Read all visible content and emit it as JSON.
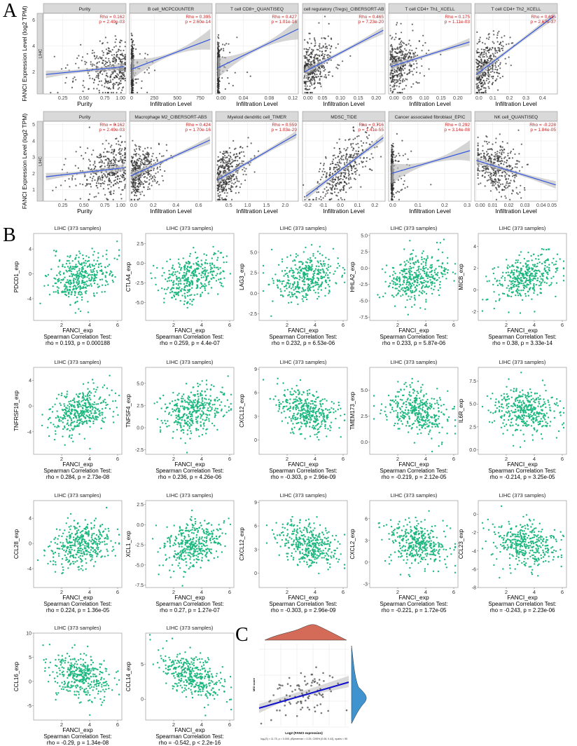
{
  "colors": {
    "point_dark": "#333333",
    "fit_line": "#3355dd",
    "ci_band": "#bdbdbd",
    "stat_red": "#cc2222",
    "strip": "#d9d9d9",
    "point_green": "#1db87f",
    "density_red": "#d46a58",
    "density_blue": "#3f93cf",
    "fit_c": "#1010cc"
  },
  "panel_labels": {
    "a": "A",
    "b": "B",
    "c": "C"
  },
  "chart_data": [
    {
      "type": "scatter",
      "panel": "A",
      "ylabel": "FANCI Expression Level (log2 TPM)",
      "row_strip": "LIHC",
      "rows": [
        {
          "ylim": [
            0.3,
            6.5
          ],
          "yticks": [
            "2",
            "4",
            "6"
          ],
          "ytick_values": [
            2,
            4,
            6
          ],
          "facets": [
            {
              "title": "Purity",
              "xlabel": "Purity",
              "rho": "Rho = 0.162",
              "p": "p = 2.49e-03",
              "xlim": [
                0.02,
                1.0
              ],
              "xticks": [
                "0.25",
                "0.50",
                "0.75",
                "1.00"
              ],
              "xtick_values": [
                0.25,
                0.5,
                0.75,
                1.0
              ],
              "fit": [
                [
                  0.05,
                  1.8
                ],
                [
                  0.98,
                  2.4
                ]
              ],
              "dist": "purity"
            },
            {
              "title": "B cell_MCPCOUNTER",
              "xlabel": "Infiltration Level",
              "rho": "Rho = 0.395",
              "p": "p = 2.60e-14",
              "xlim": [
                -20,
                880
              ],
              "xticks": [
                "0",
                "250",
                "500",
                "750"
              ],
              "xtick_values": [
                0,
                250,
                500,
                750
              ],
              "fit": [
                [
                  0,
                  2.2
                ],
                [
                  860,
                  4.5
                ]
              ],
              "dist": "zero"
            },
            {
              "title": "T cell CD8+_QUANTISEQ",
              "xlabel": "Infiltration Level",
              "rho": "Rho = 0.427",
              "p": "p = 1.01e-16",
              "xlim": [
                -0.003,
                0.125
              ],
              "xticks": [
                "0.00",
                "0.04",
                "0.08",
                "0.12"
              ],
              "xtick_values": [
                0,
                0.04,
                0.08,
                0.12
              ],
              "fit": [
                [
                  0,
                  2.3
                ],
                [
                  0.125,
                  5.3
                ]
              ],
              "dist": "zero"
            },
            {
              "title": "cell regulatory (Tregs)_CIBERSORT-AB",
              "xlabel": "Infiltration Level",
              "rho": "Rho = 0.465",
              "p": "p = 7.23e-20",
              "xlim": [
                -0.006,
                0.225
              ],
              "xticks": [
                "0.00",
                "0.05",
                "0.10",
                "0.15",
                "0.20"
              ],
              "xtick_values": [
                0,
                0.05,
                0.1,
                0.15,
                0.2
              ],
              "fit": [
                [
                  0,
                  2.0
                ],
                [
                  0.22,
                  5.2
                ]
              ],
              "dist": "skew"
            },
            {
              "title": "T cell CD4+ Th1_XCELL",
              "xlabel": "Infiltration Level",
              "rho": "Rho = 0.175",
              "p": "p = 1.11e-03",
              "xlim": [
                -0.006,
                0.24
              ],
              "xticks": [
                "0.00",
                "0.05",
                "0.10",
                "0.15",
                "0.20"
              ],
              "xtick_values": [
                0,
                0.05,
                0.1,
                0.15,
                0.2
              ],
              "fit": [
                [
                  0,
                  2.4
                ],
                [
                  0.235,
                  4.3
                ]
              ],
              "dist": "skew"
            },
            {
              "title": "T cell CD4+ Th2_XCELL",
              "xlabel": "Infiltration Level",
              "rho": "Rho = 0.615",
              "p": "p = 2.67e-37",
              "xlim": [
                -0.01,
                0.49
              ],
              "xticks": [
                "0.0",
                "0.1",
                "0.2",
                "0.3",
                "0.4"
              ],
              "xtick_values": [
                0,
                0.1,
                0.2,
                0.3,
                0.4
              ],
              "fit": [
                [
                  0,
                  1.8
                ],
                [
                  0.47,
                  6.3
                ]
              ],
              "dist": "skew"
            }
          ]
        },
        {
          "ylim": [
            0.3,
            5.2
          ],
          "yticks": [
            "1",
            "2",
            "3",
            "4",
            "5"
          ],
          "ytick_values": [
            1,
            2,
            3,
            4,
            5
          ],
          "facets": [
            {
              "title": "Purity",
              "xlabel": "Purity",
              "rho": "Rho = 0.162",
              "p": "p = 2.49e-03",
              "xlim": [
                0.02,
                1.0
              ],
              "xticks": [
                "0.25",
                "0.50",
                "0.75",
                "1.00"
              ],
              "xtick_values": [
                0.25,
                0.5,
                0.75,
                1.0
              ],
              "fit": [
                [
                  0.05,
                  1.8
                ],
                [
                  0.98,
                  2.35
                ]
              ],
              "dist": "purity"
            },
            {
              "title": "Macrophage M2_CIBERSORT-ABS",
              "xlabel": "Infiltration Level",
              "rho": "Rho = 0.424",
              "p": "p = 1.70e-16",
              "xlim": [
                -0.01,
                0.72
              ],
              "xticks": [
                "0.0",
                "0.2",
                "0.4",
                "0.6"
              ],
              "xtick_values": [
                0,
                0.2,
                0.4,
                0.6
              ],
              "fit": [
                [
                  0,
                  1.85
                ],
                [
                  0.7,
                  4.05
                ]
              ],
              "dist": "skew"
            },
            {
              "title": "Myeloid dendritic cell_TIMER",
              "xlabel": "Infiltration Level",
              "rho": "Rho = 0.559",
              "p": "p = 1.03e-29",
              "xlim": [
                0.15,
                2.35
              ],
              "xticks": [
                "0.5",
                "1.0",
                "1.5",
                "2.0"
              ],
              "xtick_values": [
                0.5,
                1.0,
                1.5,
                2.0
              ],
              "fit": [
                [
                  0.2,
                  1.6
                ],
                [
                  2.3,
                  4.4
                ]
              ],
              "dist": "skew"
            },
            {
              "title": "MDSC_TIDE",
              "xlabel": "Infiltration Level",
              "rho": "Rho = 0.716",
              "p": "p = 1.41e-55",
              "xlim": [
                -0.22,
                0.26
              ],
              "xticks": [
                "-0.2",
                "-0.1",
                "0.0",
                "0.1",
                "0.2"
              ],
              "xtick_values": [
                -0.2,
                -0.1,
                0,
                0.1,
                0.2
              ],
              "fit": [
                [
                  -0.2,
                  0.6
                ],
                [
                  0.25,
                  4.2
                ]
              ],
              "dist": "normal"
            },
            {
              "title": "Cancer associated fibroblast_EPIC",
              "xlabel": "Infiltration Level",
              "rho": "Rho = 0.292",
              "p": "p = 3.14e-08",
              "xlim": [
                -0.01,
                0.3
              ],
              "xticks": [
                "0.0",
                "0.1",
                "0.2",
                "0.3"
              ],
              "xtick_values": [
                0,
                0.1,
                0.2,
                0.3
              ],
              "fit": [
                [
                  0,
                  2.0
                ],
                [
                  0.295,
                  3.4
                ]
              ],
              "dist": "zero"
            },
            {
              "title": "NK cell_QUANTISEQ",
              "xlabel": "Infiltration Level",
              "rho": "Rho = -0.228",
              "p": "p = 1.84e-05",
              "xlim": [
                -0.001,
                0.05
              ],
              "xticks": [
                "0.00",
                "0.01",
                "0.02",
                "0.03",
                "0.04",
                "0.05"
              ],
              "xtick_values": [
                0,
                0.01,
                0.02,
                0.03,
                0.04,
                0.05
              ],
              "fit": [
                [
                  0,
                  2.8
                ],
                [
                  0.049,
                  1.3
                ]
              ],
              "dist": "nk"
            }
          ]
        }
      ]
    },
    {
      "type": "scatter",
      "panel": "B",
      "title": "LIHC (373 samples)",
      "n": 373,
      "xlabel": "FANCI_exp",
      "xlim": [
        0,
        6.3
      ],
      "xticks": [
        "2",
        "4",
        "6"
      ],
      "xtick_values": [
        2,
        4,
        6
      ],
      "test_label": "Spearman Correlation Test:",
      "plots": [
        {
          "ylabel": "PDCD1_exp",
          "ylim": [
            -7.5,
            6.5
          ],
          "yticks": [
            "-4",
            "0",
            "4"
          ],
          "ytick_values": [
            -4,
            0,
            4
          ],
          "rho_value": 0.193,
          "stat": "rho = 0.193, p = 0.000188"
        },
        {
          "ylabel": "CTLA4_exp",
          "ylim": [
            -7.3,
            3.8
          ],
          "yticks": [
            "-5.0",
            "-2.5",
            "0.0",
            "2.5"
          ],
          "ytick_values": [
            -5,
            -2.5,
            0,
            2.5
          ],
          "rho_value": 0.259,
          "stat": "rho = 0.259, p = 4.4e-07"
        },
        {
          "ylabel": "LAG3_exp",
          "ylim": [
            -3.3,
            7.3
          ],
          "yticks": [
            "-2.5",
            "0.0",
            "2.5",
            "5.0"
          ],
          "ytick_values": [
            -2.5,
            0,
            2.5,
            5
          ],
          "rho_value": 0.232,
          "stat": "rho = 0.232, p = 6.53e-06"
        },
        {
          "ylabel": "HHLA2_exp",
          "ylim": [
            -8,
            5.3
          ],
          "yticks": [
            "-7.5",
            "-5.0",
            "-2.5",
            "0.0",
            "2.5",
            "5.0"
          ],
          "ytick_values": [
            -7.5,
            -5,
            -2.5,
            0,
            2.5,
            5
          ],
          "rho_value": 0.233,
          "stat": "rho = 0.233, p = 5.87e-06"
        },
        {
          "ylabel": "MICB_exp",
          "ylim": [
            -2.8,
            5.2
          ],
          "yticks": [
            "-2",
            "0",
            "2",
            "4"
          ],
          "ytick_values": [
            -2,
            0,
            2,
            4
          ],
          "rho_value": 0.38,
          "stat": "rho = 0.38, p = 3.33e-14"
        },
        {
          "ylabel": "TNFRSF18_exp",
          "ylim": [
            -7.5,
            6
          ],
          "yticks": [
            "-4",
            "0",
            "4"
          ],
          "ytick_values": [
            -4,
            0,
            4
          ],
          "rho_value": 0.284,
          "stat": "rho = 0.284, p = 2.73e-08"
        },
        {
          "ylabel": "TNFSF4_exp",
          "ylim": [
            -3,
            6.8
          ],
          "yticks": [
            "-2.5",
            "0.0",
            "2.5",
            "5.0"
          ],
          "ytick_values": [
            -2.5,
            0,
            2.5,
            5
          ],
          "rho_value": 0.236,
          "stat": "rho = 0.236, p = 4.26e-06"
        },
        {
          "ylabel": "CXCL12_exp",
          "ylim": [
            -1.8,
            9.2
          ],
          "yticks": [
            "0",
            "3",
            "6",
            "9"
          ],
          "ytick_values": [
            0,
            3,
            6,
            9
          ],
          "rho_value": -0.303,
          "stat": "rho = -0.303, p = 2.96e-09"
        },
        {
          "ylabel": "TMEM173_exp",
          "ylim": [
            -1.2,
            7.2
          ],
          "yticks": [
            "0.0",
            "2.5",
            "5.0"
          ],
          "ytick_values": [
            0,
            2.5,
            5
          ],
          "rho_value": -0.219,
          "stat": "rho = -0.219, p = 2.12e-05"
        },
        {
          "ylabel": "IL6R_exp",
          "ylim": [
            -0.5,
            9
          ],
          "yticks": [
            "0.0",
            "2.5",
            "5.0",
            "7.5"
          ],
          "ytick_values": [
            0,
            2.5,
            5,
            7.5
          ],
          "rho_value": -0.214,
          "stat": "rho = -0.214, p = 3.25e-05"
        },
        {
          "ylabel": "CCL28_exp",
          "ylim": [
            -7,
            6.8
          ],
          "yticks": [
            "-4",
            "0",
            "4"
          ],
          "ytick_values": [
            -4,
            0,
            4
          ],
          "rho_value": 0.224,
          "stat": "rho = 0.224, p = 1.36e-05"
        },
        {
          "ylabel": "XCL1_exp",
          "ylim": [
            -7.8,
            3
          ],
          "yticks": [
            "-7.5",
            "-5.0",
            "-2.5",
            "0.0",
            "2.5"
          ],
          "ytick_values": [
            -7.5,
            -5,
            -2.5,
            0,
            2.5
          ],
          "rho_value": 0.27,
          "stat": "rho = 0.27, p = 1.27e-07"
        },
        {
          "ylabel": "CXCL12_exp",
          "ylim": [
            -1.8,
            9.2
          ],
          "yticks": [
            "0",
            "3",
            "6",
            "9"
          ],
          "ytick_values": [
            0,
            3,
            6,
            9
          ],
          "rho_value": -0.303,
          "stat": "rho = -0.303, p = 2.96e-09"
        },
        {
          "ylabel": "CXCL2_exp",
          "ylim": [
            -3.5,
            8.5
          ],
          "yticks": [
            "-3",
            "0",
            "3",
            "6"
          ],
          "ytick_values": [
            -3,
            0,
            3,
            6
          ],
          "rho_value": -0.221,
          "stat": "rho = -0.221, p = 1.72e-05"
        },
        {
          "ylabel": "CCL23_exp",
          "ylim": [
            -8,
            1.5
          ],
          "yticks": [
            "-8",
            "-6",
            "-4",
            "-2",
            "0"
          ],
          "ytick_values": [
            -8,
            -6,
            -4,
            -2,
            0
          ],
          "rho_value": -0.243,
          "stat": "rho = -0.243, p = 2.23e-06"
        },
        {
          "ylabel": "CCL16_exp",
          "ylim": [
            -8,
            10
          ],
          "yticks": [
            "-5",
            "0",
            "5",
            "10"
          ],
          "ytick_values": [
            -5,
            0,
            5,
            10
          ],
          "rho_value": -0.29,
          "stat": "rho = -0.29, p = 1.34e-08"
        },
        {
          "ylabel": "CCL14_exp",
          "ylim": [
            -3,
            9.5
          ],
          "yticks": [
            "0",
            "5"
          ],
          "ytick_values": [
            0,
            5
          ],
          "rho_value": -0.542,
          "stat": "rho = -0.542, p < 2.2e-16"
        }
      ]
    },
    {
      "type": "scatter",
      "panel": "C",
      "xlabel": "Log2 (FANCI expression)",
      "ylabel": "MSI score",
      "n": 95,
      "rho_value": 0.25,
      "footer": "logₑ(S) = 11.75, p = 0.005, ρ̂Spearman = 0.25, CI95% [0.08, 0.42], npairs = 95",
      "marginals": [
        "density-top",
        "density-right"
      ]
    }
  ]
}
